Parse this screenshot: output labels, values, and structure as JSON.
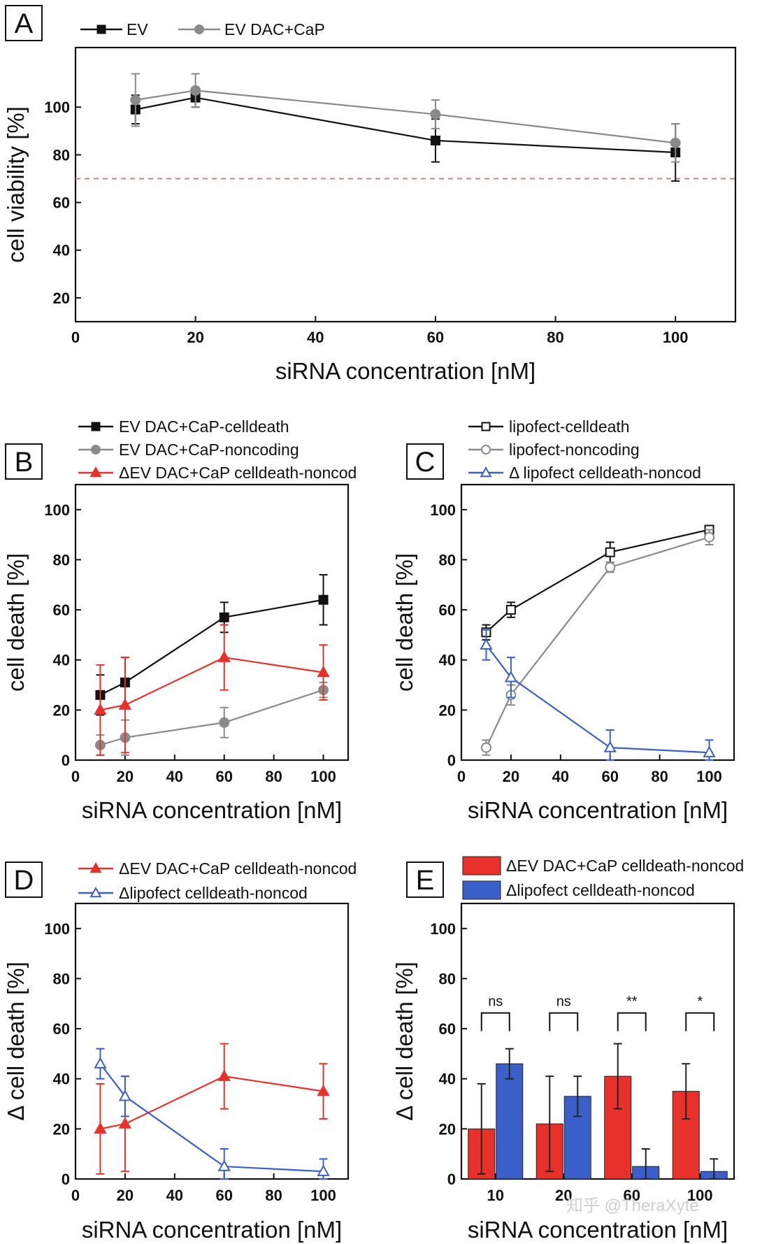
{
  "figure": {
    "watermark": "知乎 @TheraXyte",
    "panels": {
      "A": {
        "letter": "A"
      },
      "B": {
        "letter": "B"
      },
      "C": {
        "letter": "C"
      },
      "D": {
        "letter": "D"
      },
      "E": {
        "letter": "E"
      }
    }
  },
  "chart_data": [
    {
      "id": "A",
      "type": "line",
      "xlabel": "siRNA concentration [nM]",
      "ylabel": "cell viability [%]",
      "xlim": [
        0,
        110
      ],
      "ylim": [
        10,
        125
      ],
      "xticks": [
        0,
        20,
        40,
        60,
        80,
        100
      ],
      "yticks": [
        20,
        40,
        60,
        80,
        100
      ],
      "reference_line": {
        "y": 70,
        "style": "dashed",
        "color": "#c0897a"
      },
      "legend_position": "top-left, above plot",
      "series": [
        {
          "name": "EV",
          "color": "#111111",
          "marker": "square-filled",
          "x": [
            10,
            20,
            60,
            100
          ],
          "y": [
            99,
            104,
            86,
            81
          ],
          "err": [
            6,
            4,
            9,
            12
          ]
        },
        {
          "name": "EV DAC+CaP",
          "color": "#8a8a8a",
          "marker": "circle-filled",
          "x": [
            10,
            20,
            60,
            100
          ],
          "y": [
            103,
            107,
            97,
            85
          ],
          "err": [
            11,
            7,
            6,
            8
          ]
        }
      ]
    },
    {
      "id": "B",
      "type": "line",
      "xlabel": "siRNA concentration [nM]",
      "ylabel": "cell death [%]",
      "xlim": [
        0,
        110
      ],
      "ylim": [
        0,
        110
      ],
      "xticks": [
        0,
        20,
        40,
        60,
        80,
        100
      ],
      "yticks": [
        0,
        20,
        40,
        60,
        80,
        100
      ],
      "legend_position": "above plot",
      "series": [
        {
          "name": "EV DAC+CaP-celldeath",
          "color": "#111111",
          "marker": "square-filled",
          "x": [
            10,
            20,
            60,
            100
          ],
          "y": [
            26,
            31,
            57,
            64
          ],
          "err": [
            8,
            10,
            6,
            10
          ]
        },
        {
          "name": "EV DAC+CaP-noncoding",
          "color": "#8a8a8a",
          "marker": "circle-filled",
          "x": [
            10,
            20,
            60,
            100
          ],
          "y": [
            6,
            9,
            15,
            28
          ],
          "err": [
            4,
            7,
            6,
            3
          ]
        },
        {
          "name": "ΔEV DAC+CaP celldeath-noncod",
          "color": "#e8312a",
          "marker": "triangle-filled",
          "x": [
            10,
            20,
            60,
            100
          ],
          "y": [
            20,
            22,
            41,
            35
          ],
          "err": [
            18,
            19,
            13,
            11
          ]
        }
      ]
    },
    {
      "id": "C",
      "type": "line",
      "xlabel": "siRNA concentration [nM]",
      "ylabel": "cell death [%]",
      "xlim": [
        0,
        110
      ],
      "ylim": [
        0,
        110
      ],
      "xticks": [
        0,
        20,
        40,
        60,
        80,
        100
      ],
      "yticks": [
        0,
        20,
        40,
        60,
        80,
        100
      ],
      "legend_position": "above plot",
      "series": [
        {
          "name": "lipofect-celldeath",
          "color": "#111111",
          "marker": "square-open",
          "x": [
            10,
            20,
            60,
            100
          ],
          "y": [
            51,
            60,
            83,
            92
          ],
          "err": [
            3,
            3,
            4,
            1
          ]
        },
        {
          "name": "lipofect-noncoding",
          "color": "#8a8a8a",
          "marker": "circle-open",
          "x": [
            10,
            20,
            60,
            100
          ],
          "y": [
            5,
            26,
            77,
            89
          ],
          "err": [
            3,
            4,
            2,
            3
          ]
        },
        {
          "name": "Δ lipofect celldeath-noncod",
          "color": "#3b5fc8",
          "marker": "triangle-open",
          "x": [
            10,
            20,
            60,
            100
          ],
          "y": [
            46,
            33,
            5,
            3
          ],
          "err": [
            6,
            8,
            7,
            5
          ]
        }
      ]
    },
    {
      "id": "D",
      "type": "line",
      "xlabel": "siRNA concentration [nM]",
      "ylabel": "Δ cell death [%]",
      "xlim": [
        0,
        110
      ],
      "ylim": [
        0,
        110
      ],
      "xticks": [
        0,
        20,
        40,
        60,
        80,
        100
      ],
      "yticks": [
        0,
        20,
        40,
        60,
        80,
        100
      ],
      "legend_position": "above plot",
      "series": [
        {
          "name": "ΔEV DAC+CaP celldeath-noncod",
          "color": "#e8312a",
          "marker": "triangle-filled",
          "x": [
            10,
            20,
            60,
            100
          ],
          "y": [
            20,
            22,
            41,
            35
          ],
          "err": [
            18,
            19,
            13,
            11
          ]
        },
        {
          "name": "Δlipofect celldeath-noncod",
          "color": "#3b5fc8",
          "marker": "triangle-open",
          "x": [
            10,
            20,
            60,
            100
          ],
          "y": [
            46,
            33,
            5,
            3
          ],
          "err": [
            6,
            8,
            7,
            5
          ]
        }
      ]
    },
    {
      "id": "E",
      "type": "bar",
      "xlabel": "siRNA concentration [nM]",
      "ylabel": "Δ cell death [%]",
      "ylim": [
        0,
        110
      ],
      "yticks": [
        0,
        20,
        40,
        60,
        80,
        100
      ],
      "categories": [
        "10",
        "20",
        "60",
        "100"
      ],
      "legend_position": "above plot",
      "series": [
        {
          "name": "ΔEV DAC+CaP celldeath-noncod",
          "color": "#e8312a",
          "values": [
            20,
            22,
            41,
            35
          ],
          "err": [
            18,
            19,
            13,
            11
          ]
        },
        {
          "name": "Δlipofect celldeath-noncod",
          "color": "#3b5fc8",
          "values": [
            46,
            33,
            5,
            3
          ],
          "err": [
            6,
            8,
            7,
            5
          ]
        }
      ],
      "significance": [
        "ns",
        "ns",
        "**",
        "*"
      ]
    }
  ]
}
